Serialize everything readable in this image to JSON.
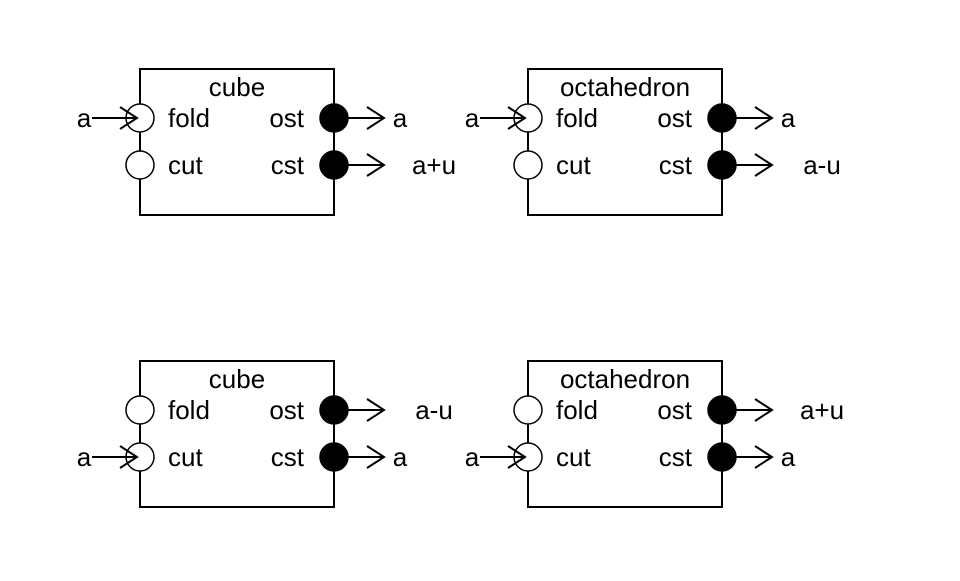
{
  "blocks": [
    {
      "title": "cube",
      "left_ports": [
        "fold",
        "cut"
      ],
      "right_ports": [
        "ost",
        "cst"
      ],
      "input": {
        "port": "fold",
        "label": "a"
      },
      "outputs": [
        {
          "port": "ost",
          "label": "a"
        },
        {
          "port": "cst",
          "label": "a+u"
        }
      ]
    },
    {
      "title": "octahedron",
      "left_ports": [
        "fold",
        "cut"
      ],
      "right_ports": [
        "ost",
        "cst"
      ],
      "input": {
        "port": "fold",
        "label": "a"
      },
      "outputs": [
        {
          "port": "ost",
          "label": "a"
        },
        {
          "port": "cst",
          "label": "a-u"
        }
      ]
    },
    {
      "title": "cube",
      "left_ports": [
        "fold",
        "cut"
      ],
      "right_ports": [
        "ost",
        "cst"
      ],
      "input": {
        "port": "cut",
        "label": "a"
      },
      "outputs": [
        {
          "port": "ost",
          "label": "a-u"
        },
        {
          "port": "cst",
          "label": "a"
        }
      ]
    },
    {
      "title": "octahedron",
      "left_ports": [
        "fold",
        "cut"
      ],
      "right_ports": [
        "ost",
        "cst"
      ],
      "input": {
        "port": "cut",
        "label": "a"
      },
      "outputs": [
        {
          "port": "ost",
          "label": "a+u"
        },
        {
          "port": "cst",
          "label": "a"
        }
      ]
    }
  ]
}
